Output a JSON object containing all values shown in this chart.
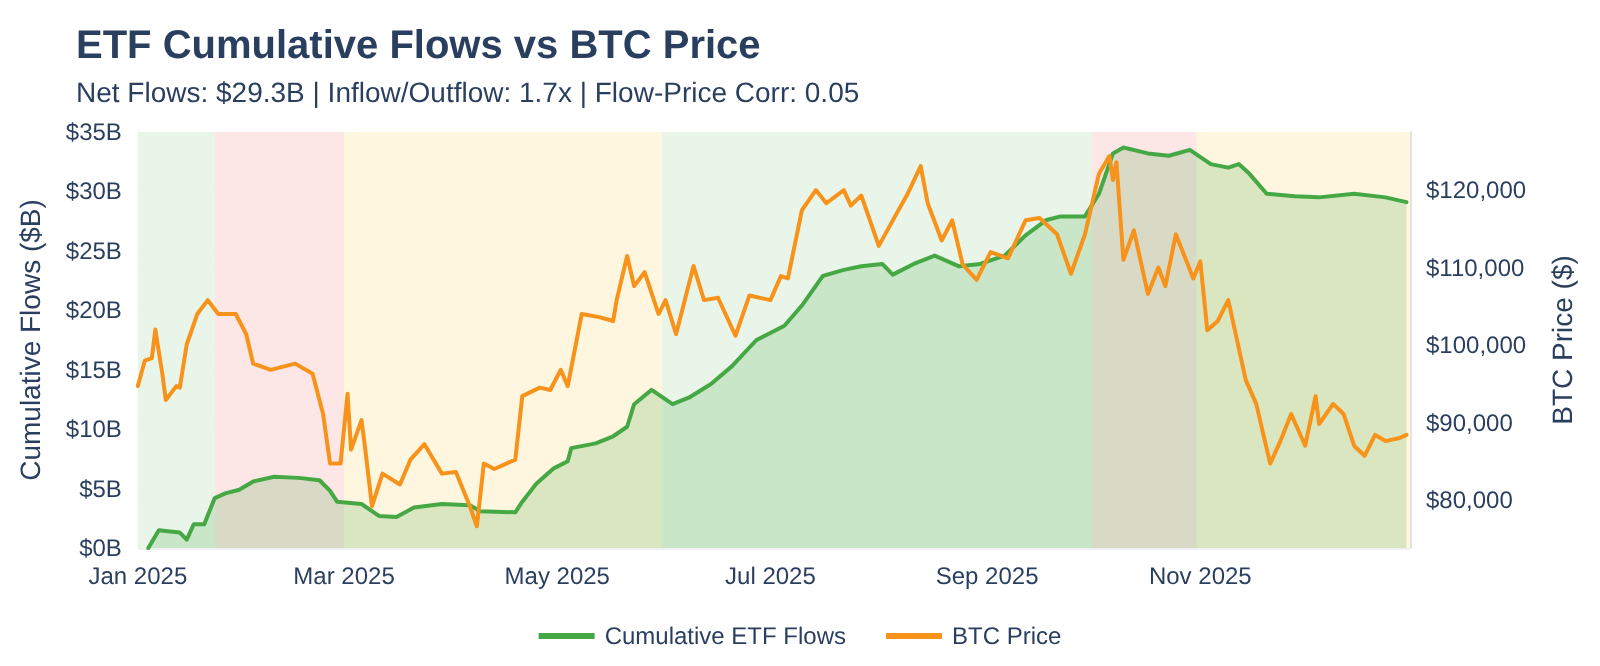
{
  "chart_data": {
    "type": "line",
    "title": "ETF Cumulative Flows vs BTC Price",
    "subtitle": "Net Flows: $29.3B | Inflow/Outflow: 1.7x | Flow-Price Corr: 0.05",
    "ylabel": "Cumulative Flows ($B)",
    "y2label": "BTC Price ($)",
    "xlim": [
      "2025-01-01",
      "2025-12-31"
    ],
    "xticks": [
      {
        "value": "2025-01-01",
        "label": "Jan 2025"
      },
      {
        "value": "2025-03-01",
        "label": "Mar 2025"
      },
      {
        "value": "2025-05-01",
        "label": "May 2025"
      },
      {
        "value": "2025-07-01",
        "label": "Jul 2025"
      },
      {
        "value": "2025-09-01",
        "label": "Sep 2025"
      },
      {
        "value": "2025-11-01",
        "label": "Nov 2025"
      }
    ],
    "ylim": [
      0,
      35
    ],
    "yticks": [
      {
        "value": 0,
        "label": "$0B"
      },
      {
        "value": 5,
        "label": "$5B"
      },
      {
        "value": 10,
        "label": "$10B"
      },
      {
        "value": 15,
        "label": "$15B"
      },
      {
        "value": 20,
        "label": "$20B"
      },
      {
        "value": 25,
        "label": "$25B"
      },
      {
        "value": 30,
        "label": "$30B"
      },
      {
        "value": 35,
        "label": "$35B"
      }
    ],
    "y2lim": [
      73800,
      127500
    ],
    "y2ticks": [
      {
        "value": 80000,
        "label": "$80,000"
      },
      {
        "value": 90000,
        "label": "$90,000"
      },
      {
        "value": 100000,
        "label": "$100,000"
      },
      {
        "value": 110000,
        "label": "$110,000"
      },
      {
        "value": 120000,
        "label": "$120,000"
      }
    ],
    "series": [
      {
        "name": "Cumulative ETF Flows",
        "type": "area",
        "color": "#45a845",
        "x": [
          "2025-01-04",
          "2025-01-07",
          "2025-01-13",
          "2025-01-15",
          "2025-01-17",
          "2025-01-20",
          "2025-01-23",
          "2025-01-26",
          "2025-01-30",
          "2025-02-03",
          "2025-02-09",
          "2025-02-16",
          "2025-02-22",
          "2025-02-25",
          "2025-02-27",
          "2025-03-06",
          "2025-03-11",
          "2025-03-16",
          "2025-03-21",
          "2025-03-29",
          "2025-04-06",
          "2025-04-09",
          "2025-04-19",
          "2025-04-21",
          "2025-04-25",
          "2025-04-30",
          "2025-05-04",
          "2025-05-05",
          "2025-05-12",
          "2025-05-17",
          "2025-05-21",
          "2025-05-23",
          "2025-05-28",
          "2025-06-03",
          "2025-06-08",
          "2025-06-14",
          "2025-06-20",
          "2025-06-27",
          "2025-07-05",
          "2025-07-10",
          "2025-07-16",
          "2025-07-22",
          "2025-07-27",
          "2025-08-02",
          "2025-08-05",
          "2025-08-11",
          "2025-08-17",
          "2025-08-24",
          "2025-08-30",
          "2025-09-06",
          "2025-09-12",
          "2025-09-18",
          "2025-09-22",
          "2025-09-29",
          "2025-10-03",
          "2025-10-07",
          "2025-10-10",
          "2025-10-17",
          "2025-10-23",
          "2025-10-29",
          "2025-11-04",
          "2025-11-09",
          "2025-11-12",
          "2025-11-15",
          "2025-11-20",
          "2025-11-28",
          "2025-12-05",
          "2025-12-15",
          "2025-12-24",
          "2025-12-30"
        ],
        "values": [
          0,
          1.5,
          1.3,
          0.7,
          2.0,
          2.0,
          4.2,
          4.6,
          4.9,
          5.6,
          6.0,
          5.9,
          5.7,
          4.8,
          3.9,
          3.7,
          2.7,
          2.6,
          3.4,
          3.7,
          3.6,
          3.1,
          3.0,
          3.9,
          5.4,
          6.7,
          7.3,
          8.4,
          8.8,
          9.4,
          10.2,
          12.1,
          13.3,
          12.1,
          12.7,
          13.8,
          15.3,
          17.5,
          18.7,
          20.4,
          22.9,
          23.4,
          23.7,
          23.9,
          23.0,
          23.9,
          24.6,
          23.7,
          23.9,
          24.6,
          26.3,
          27.6,
          27.9,
          27.9,
          29.8,
          33.2,
          33.7,
          33.2,
          33.0,
          33.5,
          32.3,
          32.0,
          32.3,
          31.5,
          29.8,
          29.6,
          29.5,
          29.8,
          29.5,
          29.1
        ]
      },
      {
        "name": "BTC Price",
        "axis": "y2",
        "color": "#f7931a",
        "x": [
          "2025-01-01",
          "2025-01-03",
          "2025-01-05",
          "2025-01-06",
          "2025-01-08",
          "2025-01-09",
          "2025-01-12",
          "2025-01-13",
          "2025-01-15",
          "2025-01-18",
          "2025-01-21",
          "2025-01-24",
          "2025-01-29",
          "2025-02-01",
          "2025-02-03",
          "2025-02-08",
          "2025-02-15",
          "2025-02-20",
          "2025-02-23",
          "2025-02-25",
          "2025-02-28",
          "2025-03-02",
          "2025-03-03",
          "2025-03-06",
          "2025-03-07",
          "2025-03-09",
          "2025-03-12",
          "2025-03-17",
          "2025-03-20",
          "2025-03-24",
          "2025-03-29",
          "2025-04-02",
          "2025-04-06",
          "2025-04-08",
          "2025-04-10",
          "2025-04-13",
          "2025-04-19",
          "2025-04-21",
          "2025-04-26",
          "2025-04-29",
          "2025-05-02",
          "2025-05-04",
          "2025-05-08",
          "2025-05-13",
          "2025-05-17",
          "2025-05-18",
          "2025-05-21",
          "2025-05-23",
          "2025-05-26",
          "2025-05-30",
          "2025-06-01",
          "2025-06-04",
          "2025-06-09",
          "2025-06-12",
          "2025-06-16",
          "2025-06-21",
          "2025-06-25",
          "2025-07-01",
          "2025-07-04",
          "2025-07-06",
          "2025-07-10",
          "2025-07-14",
          "2025-07-17",
          "2025-07-22",
          "2025-07-24",
          "2025-07-27",
          "2025-08-01",
          "2025-08-06",
          "2025-08-09",
          "2025-08-13",
          "2025-08-15",
          "2025-08-19",
          "2025-08-22",
          "2025-08-25",
          "2025-08-29",
          "2025-09-02",
          "2025-09-07",
          "2025-09-12",
          "2025-09-16",
          "2025-09-21",
          "2025-09-25",
          "2025-09-29",
          "2025-10-03",
          "2025-10-06",
          "2025-10-07",
          "2025-10-08",
          "2025-10-10",
          "2025-10-13",
          "2025-10-17",
          "2025-10-20",
          "2025-10-22",
          "2025-10-25",
          "2025-10-30",
          "2025-11-01",
          "2025-11-03",
          "2025-11-06",
          "2025-11-09",
          "2025-11-14",
          "2025-11-17",
          "2025-11-21",
          "2025-11-24",
          "2025-11-27",
          "2025-12-01",
          "2025-12-04",
          "2025-12-05",
          "2025-12-09",
          "2025-12-12",
          "2025-12-15",
          "2025-12-18",
          "2025-12-21",
          "2025-12-24",
          "2025-12-28",
          "2025-12-30"
        ],
        "values": [
          94700,
          98000,
          98300,
          102000,
          96300,
          92900,
          94700,
          94500,
          100100,
          104000,
          105800,
          104000,
          104000,
          101400,
          97600,
          96800,
          97600,
          96300,
          91100,
          84700,
          84700,
          93700,
          86500,
          90300,
          86800,
          79200,
          83400,
          82000,
          85200,
          87200,
          83400,
          83600,
          79200,
          76600,
          84700,
          84000,
          85200,
          93400,
          94500,
          94200,
          96800,
          94700,
          104000,
          103600,
          103100,
          105800,
          111500,
          107600,
          109400,
          104000,
          105800,
          101400,
          110200,
          105800,
          106100,
          101200,
          106400,
          105800,
          108900,
          108600,
          117400,
          120000,
          118300,
          120000,
          118000,
          119300,
          112800,
          116900,
          119300,
          123100,
          118300,
          113500,
          116100,
          110400,
          108400,
          112000,
          111200,
          116100,
          116400,
          114300,
          109200,
          114300,
          122100,
          124400,
          121300,
          123600,
          111000,
          114800,
          106600,
          110000,
          107600,
          114300,
          108600,
          110800,
          101900,
          103100,
          105800,
          95500,
          92400,
          84700,
          87700,
          91100,
          87000,
          93400,
          89800,
          92400,
          91100,
          87000,
          85700,
          88400,
          87600,
          88000,
          88400
        ]
      }
    ],
    "bands": [
      {
        "axis": "x",
        "from": "2025-01-01",
        "to": "2025-01-23",
        "color": "#eaf5ea"
      },
      {
        "axis": "x",
        "from": "2025-01-23",
        "to": "2025-03-01",
        "color": "#fde6e6"
      },
      {
        "axis": "x",
        "from": "2025-03-01",
        "to": "2025-05-31",
        "color": "#fff6df"
      },
      {
        "axis": "x",
        "from": "2025-05-31",
        "to": "2025-10-01",
        "color": "#eaf5ea"
      },
      {
        "axis": "x",
        "from": "2025-10-01",
        "to": "2025-10-31",
        "color": "#fde6e6"
      },
      {
        "axis": "x",
        "from": "2025-10-31",
        "to": "2025-12-31",
        "color": "#fff6df"
      }
    ],
    "grid": true,
    "legend": "bottom",
    "marker": "none",
    "line_style": "solid"
  }
}
